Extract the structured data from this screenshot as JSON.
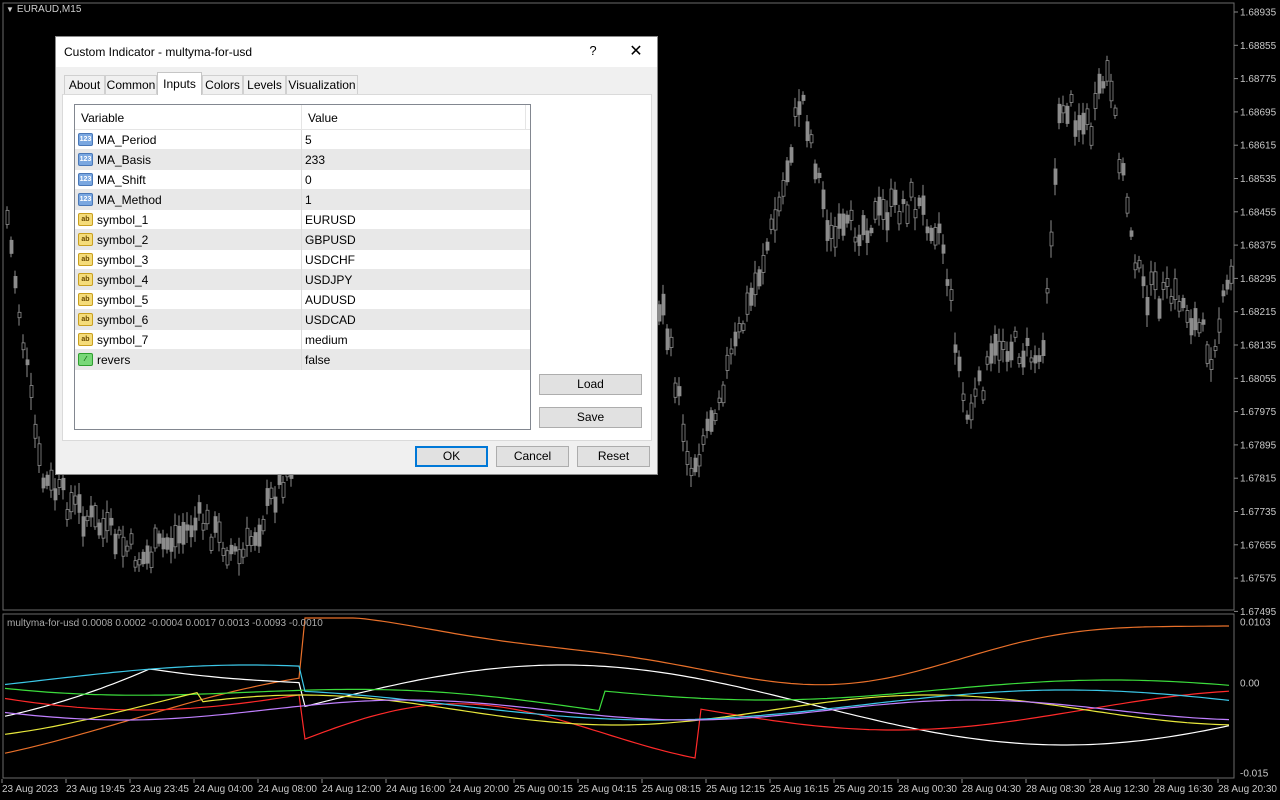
{
  "chart": {
    "title": "EURAUD,M15",
    "price_labels": [
      "1.68935",
      "1.68855",
      "1.68775",
      "1.68695",
      "1.68615",
      "1.68535",
      "1.68455",
      "1.68375",
      "1.68295",
      "1.68215",
      "1.68135",
      "1.68055",
      "1.67975",
      "1.67895",
      "1.67815",
      "1.67735",
      "1.67655",
      "1.67575",
      "1.67495"
    ],
    "indicator_label": "multyma-for-usd 0.0008 0.0002 -0.0004 0.0017 0.0013 -0.0093 -0.0010",
    "indicator_scale": [
      "0.0103",
      "0.00",
      "-0.015"
    ],
    "time_labels": [
      "23 Aug 2023",
      "23 Aug 19:45",
      "23 Aug 23:45",
      "24 Aug 04:00",
      "24 Aug 08:00",
      "24 Aug 12:00",
      "24 Aug 16:00",
      "24 Aug 20:00",
      "25 Aug 00:15",
      "25 Aug 04:15",
      "25 Aug 08:15",
      "25 Aug 12:15",
      "25 Aug 16:15",
      "25 Aug 20:15",
      "28 Aug 00:30",
      "28 Aug 04:30",
      "28 Aug 08:30",
      "28 Aug 12:30",
      "28 Aug 16:30",
      "28 Aug 20:30"
    ],
    "colors": {
      "background": "#000000",
      "candle": "#8c8c8c",
      "line_white": "#ffffff",
      "line_orange": "#e8702a",
      "line_red": "#ff2a2a",
      "line_green": "#3cdc3c",
      "line_yellow": "#e8e83c",
      "line_cyan": "#3cc8e8",
      "line_violet": "#c080ff"
    }
  },
  "dialog": {
    "title": "Custom Indicator - multyma-for-usd",
    "help_glyph": "?",
    "close_glyph": "✕",
    "tabs": [
      {
        "label": "About"
      },
      {
        "label": "Common"
      },
      {
        "label": "Inputs",
        "active": true
      },
      {
        "label": "Colors"
      },
      {
        "label": "Levels"
      },
      {
        "label": "Visualization"
      }
    ],
    "grid": {
      "header_variable": "Variable",
      "header_value": "Value",
      "rows": [
        {
          "icon": "num",
          "glyph": "123",
          "variable": "MA_Period",
          "value": "5"
        },
        {
          "icon": "num",
          "glyph": "123",
          "variable": "MA_Basis",
          "value": "233"
        },
        {
          "icon": "num",
          "glyph": "123",
          "variable": "MA_Shift",
          "value": "0"
        },
        {
          "icon": "num",
          "glyph": "123",
          "variable": "MA_Method",
          "value": "1"
        },
        {
          "icon": "str",
          "glyph": "ab",
          "variable": "symbol_1",
          "value": "EURUSD"
        },
        {
          "icon": "str",
          "glyph": "ab",
          "variable": "symbol_2",
          "value": "GBPUSD"
        },
        {
          "icon": "str",
          "glyph": "ab",
          "variable": "symbol_3",
          "value": "USDCHF"
        },
        {
          "icon": "str",
          "glyph": "ab",
          "variable": "symbol_4",
          "value": "USDJPY"
        },
        {
          "icon": "str",
          "glyph": "ab",
          "variable": "symbol_5",
          "value": "AUDUSD"
        },
        {
          "icon": "str",
          "glyph": "ab",
          "variable": "symbol_6",
          "value": "USDCAD"
        },
        {
          "icon": "str",
          "glyph": "ab",
          "variable": "symbol_7",
          "value": "medium"
        },
        {
          "icon": "bool",
          "glyph": "⁄",
          "variable": "revers",
          "value": "false"
        }
      ]
    },
    "buttons": {
      "load": "Load",
      "save": "Save",
      "ok": "OK",
      "cancel": "Cancel",
      "reset": "Reset"
    }
  }
}
